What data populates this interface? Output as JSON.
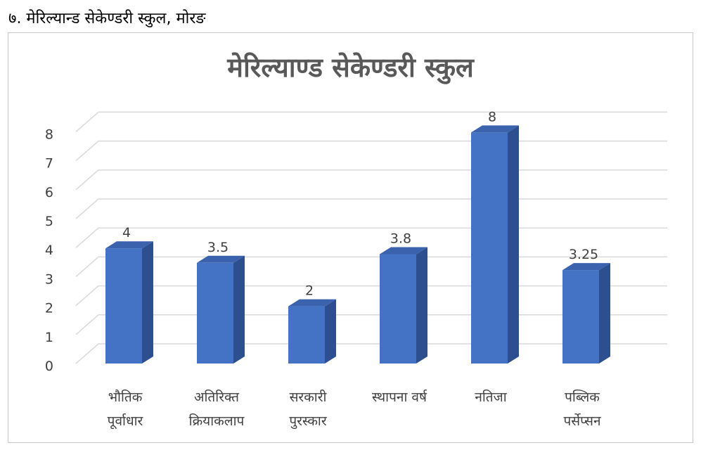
{
  "caption": "७. मेरिल्यान्ड सेकेण्डरी स्कुल, मोरङ",
  "chart_data": {
    "type": "bar",
    "title": "मेरिल्याण्ड सेकेण्डरी स्कुल",
    "categories": [
      [
        "भौतिक",
        "पूर्वाधार"
      ],
      [
        "अतिरिक्त",
        "क्रियाकलाप"
      ],
      [
        "सरकारी",
        "पुरस्कार"
      ],
      [
        "स्थापना वर्ष"
      ],
      [
        "नतिजा"
      ],
      [
        "पब्लिक",
        "पर्सेप्सन"
      ]
    ],
    "values": [
      4,
      3.5,
      2,
      3.8,
      8,
      3.25
    ],
    "value_labels": [
      "4",
      "3.5",
      "2",
      "3.8",
      "8",
      "3.25"
    ],
    "ylim": [
      0,
      8
    ],
    "yticks": [
      "0",
      "1",
      "2",
      "3",
      "4",
      "5",
      "6",
      "7",
      "8"
    ],
    "grid": true,
    "colors": {
      "bar_front": "#4472c4",
      "bar_side": "#2e4f8f",
      "bar_top": "#3a62ad",
      "grid": "#d9d9d9",
      "text": "#404040"
    }
  }
}
